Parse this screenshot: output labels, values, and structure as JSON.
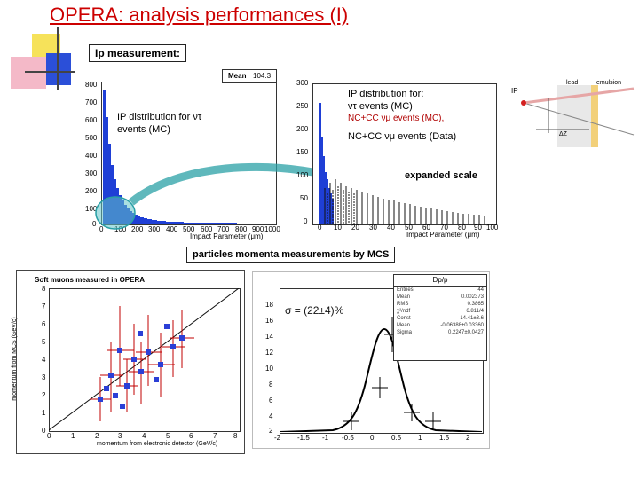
{
  "title": "OPERA: analysis performances (I)",
  "ip_banner": "Ip measurement:",
  "left_hist": {
    "mean_label": "Mean",
    "mean_value": "104.3",
    "y_ticks": [
      "800",
      "700",
      "600",
      "500",
      "400",
      "300",
      "200",
      "100",
      "0"
    ],
    "x_ticks": [
      "0",
      "100",
      "200",
      "300",
      "400",
      "500",
      "600",
      "700",
      "800",
      "900",
      "1000"
    ],
    "x_label": "Impact Parameter (μm)",
    "annotation_line1": "IP distribution for ντ",
    "annotation_line2": "events (MC)"
  },
  "right_hist": {
    "y_ticks": [
      "300",
      "250",
      "200",
      "150",
      "100",
      "50",
      "0"
    ],
    "x_ticks": [
      "0",
      "10",
      "20",
      "30",
      "40",
      "50",
      "60",
      "70",
      "80",
      "90",
      "100"
    ],
    "x_label": "Impact Parameter (μm)",
    "legend_title": "IP distribution for:",
    "legend_line1": "ντ events (MC)",
    "legend_line2": "NC+CC νμ events (MC),",
    "legend_line3": "NC+CC νμ events (Data)",
    "expanded_label": "expanded scale"
  },
  "diagram": {
    "ip_label": "IP",
    "lead_label": "lead",
    "emulsion_label": "emulsion",
    "dz_label": "ΔZ"
  },
  "mcs_banner": "particles momenta measurements by MCS",
  "scatter": {
    "title": "Soft muons measured in OPERA",
    "y_label": "momentum from MCS (GeV/c)",
    "x_label": "momentum from electronic detector (GeV/c)",
    "y_ticks": [
      "8",
      "7",
      "6",
      "5",
      "4",
      "3",
      "2",
      "1",
      "0"
    ],
    "x_ticks": [
      "0",
      "1",
      "2",
      "3",
      "4",
      "5",
      "6",
      "7",
      "8"
    ]
  },
  "resolution": {
    "sigma_label": "σ = (22±4)%",
    "title": "Dp/p",
    "y_ticks": [
      "18",
      "16",
      "14",
      "12",
      "10",
      "8",
      "6",
      "4",
      "2"
    ],
    "x_ticks": [
      "-2",
      "-1.5",
      "-1",
      "-0.5",
      "0",
      "0.5",
      "1",
      "1.5",
      "2"
    ],
    "stats": [
      {
        "k": "Entries",
        "v": "44"
      },
      {
        "k": "Mean",
        "v": "0.002373"
      },
      {
        "k": "RMS",
        "v": "0.3865"
      },
      {
        "k": "χ²/ndf",
        "v": "6.811/4"
      },
      {
        "k": "Const",
        "v": "14.41±3.6"
      },
      {
        "k": "Mean",
        "v": "-0.06388±0.03360"
      },
      {
        "k": "Sigma",
        "v": "0.2247±0.0427"
      }
    ]
  }
}
